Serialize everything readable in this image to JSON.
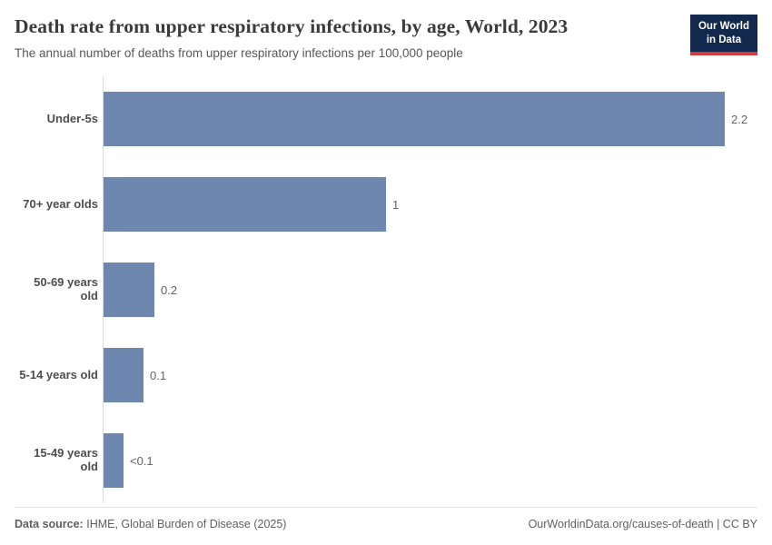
{
  "header": {
    "title": "Death rate from upper respiratory infections, by age, World, 2023",
    "subtitle": "The annual number of deaths from upper respiratory infections per 100,000 people",
    "logo": {
      "line1": "Our World",
      "line2": "in Data"
    }
  },
  "chart_data": {
    "type": "bar",
    "orientation": "horizontal",
    "title": "Death rate from upper respiratory infections, by age, World, 2023",
    "xlabel": "",
    "ylabel": "",
    "unit": "deaths per 100,000 people",
    "categories": [
      "Under-5s",
      "70+ year olds",
      "50-69 years old",
      "5-14 years old",
      "15-49 years old"
    ],
    "values": [
      2.2,
      1.0,
      0.18,
      0.14,
      0.07
    ],
    "value_labels": [
      "2.2",
      "1",
      "0.2",
      "0.1",
      "<0.1"
    ],
    "xlim": [
      0,
      2.2
    ],
    "grid": false,
    "legend_position": "none",
    "bar_color": "#6e87ae"
  },
  "footer": {
    "data_source_label": "Data source:",
    "data_source_value": "IHME, Global Burden of Disease (2025)",
    "credit": "OurWorldinData.org/causes-of-death | CC BY"
  },
  "colors": {
    "bar": "#6e87ae",
    "logo_background": "#12294d",
    "logo_stripe": "#d43b3b",
    "axis_line": "#dcdcdc",
    "title_text": "#3a3a3a",
    "muted_text": "#5f5f5f"
  }
}
